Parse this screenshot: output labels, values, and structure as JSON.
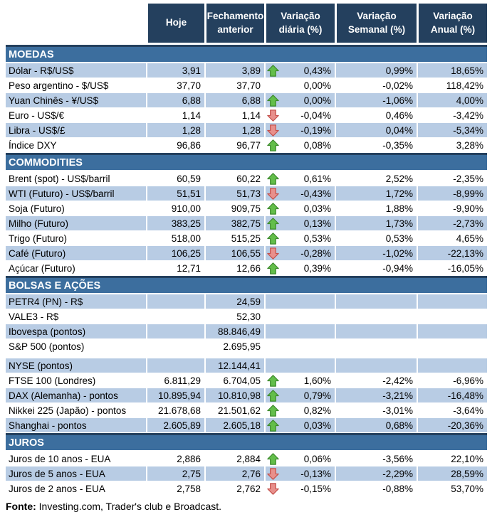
{
  "header": {
    "columns": [
      "Hoje",
      "Fechamento anterior",
      "Variação diária (%)",
      "Variação Semanal (%)",
      "Variação Anual (%)"
    ]
  },
  "colors": {
    "header_bg": "#24405E",
    "section_bg": "#3C6E9E",
    "stripe_bg": "#B8CCE4",
    "up_arrow_fill": "#63BE4A",
    "up_arrow_outline": "#3E8A2E",
    "down_arrow_fill": "#E8908C",
    "down_arrow_outline": "#C4504B"
  },
  "sections": [
    {
      "title": "MOEDAS",
      "rows": [
        {
          "label": "Dólar - R$/US$",
          "hoje": "3,91",
          "fechamento": "3,89",
          "arrow": "up",
          "var_diaria": "0,43%",
          "var_semanal": "0,99%",
          "var_anual": "18,65%",
          "shaded": true
        },
        {
          "label": "Peso argentino - $/US$",
          "hoje": "37,70",
          "fechamento": "37,70",
          "arrow": "none",
          "var_diaria": "0,00%",
          "var_semanal": "-0,02%",
          "var_anual": "118,42%",
          "shaded": false
        },
        {
          "label": "Yuan Chinês - ¥/US$",
          "hoje": "6,88",
          "fechamento": "6,88",
          "arrow": "up",
          "var_diaria": "0,00%",
          "var_semanal": "-1,06%",
          "var_anual": "4,00%",
          "shaded": true
        },
        {
          "label": "Euro - US$/€",
          "hoje": "1,14",
          "fechamento": "1,14",
          "arrow": "down",
          "var_diaria": "-0,04%",
          "var_semanal": "0,46%",
          "var_anual": "-3,42%",
          "shaded": false
        },
        {
          "label": "Libra - US$/£",
          "hoje": "1,28",
          "fechamento": "1,28",
          "arrow": "down",
          "var_diaria": "-0,19%",
          "var_semanal": "0,04%",
          "var_anual": "-5,34%",
          "shaded": true
        },
        {
          "label": "Índice DXY",
          "hoje": "96,86",
          "fechamento": "96,77",
          "arrow": "up",
          "var_diaria": "0,08%",
          "var_semanal": "-0,35%",
          "var_anual": "3,28%",
          "shaded": false
        }
      ]
    },
    {
      "title": "COMMODITIES",
      "rows": [
        {
          "label": "Brent (spot) - US$/barril",
          "hoje": "60,59",
          "fechamento": "60,22",
          "arrow": "up",
          "var_diaria": "0,61%",
          "var_semanal": "2,52%",
          "var_anual": "-2,35%",
          "shaded": false
        },
        {
          "label": "WTI (Futuro) - US$/barril",
          "hoje": "51,51",
          "fechamento": "51,73",
          "arrow": "down",
          "var_diaria": "-0,43%",
          "var_semanal": "1,72%",
          "var_anual": "-8,99%",
          "shaded": true
        },
        {
          "label": "Soja (Futuro)",
          "hoje": "910,00",
          "fechamento": "909,75",
          "arrow": "up",
          "var_diaria": "0,03%",
          "var_semanal": "1,88%",
          "var_anual": "-9,90%",
          "shaded": false
        },
        {
          "label": "Milho (Futuro)",
          "hoje": "383,25",
          "fechamento": "382,75",
          "arrow": "up",
          "var_diaria": "0,13%",
          "var_semanal": "1,73%",
          "var_anual": "-2,73%",
          "shaded": true
        },
        {
          "label": "Trigo (Futuro)",
          "hoje": "518,00",
          "fechamento": "515,25",
          "arrow": "up",
          "var_diaria": "0,53%",
          "var_semanal": "0,53%",
          "var_anual": "4,65%",
          "shaded": false
        },
        {
          "label": "Café (Futuro)",
          "hoje": "106,25",
          "fechamento": "106,55",
          "arrow": "down",
          "var_diaria": "-0,28%",
          "var_semanal": "-1,02%",
          "var_anual": "-22,13%",
          "shaded": true
        },
        {
          "label": "Açúcar (Futuro)",
          "hoje": "12,71",
          "fechamento": "12,66",
          "arrow": "up",
          "var_diaria": "0,39%",
          "var_semanal": "-0,94%",
          "var_anual": "-16,05%",
          "shaded": false
        }
      ]
    },
    {
      "title": "BOLSAS E AÇÕES",
      "rows": [
        {
          "label": "PETR4 (PN) - R$",
          "hoje": "",
          "fechamento": "24,59",
          "arrow": "none",
          "var_diaria": "",
          "var_semanal": "",
          "var_anual": "",
          "shaded": true
        },
        {
          "label": "VALE3 - R$",
          "hoje": "",
          "fechamento": "52,30",
          "arrow": "none",
          "var_diaria": "",
          "var_semanal": "",
          "var_anual": "",
          "shaded": false
        },
        {
          "label": "Ibovespa (pontos)",
          "hoje": "",
          "fechamento": "88.846,49",
          "arrow": "none",
          "var_diaria": "",
          "var_semanal": "",
          "var_anual": "",
          "shaded": true
        },
        {
          "label": "S&P 500 (pontos)",
          "hoje": "",
          "fechamento": "2.695,95",
          "arrow": "none",
          "var_diaria": "",
          "var_semanal": "",
          "var_anual": "",
          "shaded": false,
          "spacer_after": true
        },
        {
          "label": "NYSE (pontos)",
          "hoje": "",
          "fechamento": "12.144,41",
          "arrow": "none",
          "var_diaria": "",
          "var_semanal": "",
          "var_anual": "",
          "shaded": true
        },
        {
          "label": "FTSE 100 (Londres)",
          "hoje": "6.811,29",
          "fechamento": "6.704,05",
          "arrow": "up",
          "var_diaria": "1,60%",
          "var_semanal": "-2,42%",
          "var_anual": "-6,96%",
          "shaded": false
        },
        {
          "label": "DAX (Alemanha) - pontos",
          "hoje": "10.895,94",
          "fechamento": "10.810,98",
          "arrow": "up",
          "var_diaria": "0,79%",
          "var_semanal": "-3,21%",
          "var_anual": "-16,48%",
          "shaded": true
        },
        {
          "label": "Nikkei 225 (Japão) - pontos",
          "hoje": "21.678,68",
          "fechamento": "21.501,62",
          "arrow": "up",
          "var_diaria": "0,82%",
          "var_semanal": "-3,01%",
          "var_anual": "-3,64%",
          "shaded": false
        },
        {
          "label": "Shanghai - pontos",
          "hoje": "2.605,89",
          "fechamento": "2.605,18",
          "arrow": "up",
          "var_diaria": "0,03%",
          "var_semanal": "0,68%",
          "var_anual": "-20,36%",
          "shaded": true
        }
      ]
    },
    {
      "title": "JUROS",
      "rows": [
        {
          "label": "Juros de 10 anos - EUA",
          "hoje": "2,886",
          "fechamento": "2,884",
          "arrow": "up",
          "var_diaria": "0,06%",
          "var_semanal": "-3,56%",
          "var_anual": "22,10%",
          "shaded": false
        },
        {
          "label": "Juros de 5 anos - EUA",
          "hoje": "2,75",
          "fechamento": "2,76",
          "arrow": "down",
          "var_diaria": "-0,13%",
          "var_semanal": "-2,29%",
          "var_anual": "28,59%",
          "shaded": true
        },
        {
          "label": "Juros de 2 anos - EUA",
          "hoje": "2,758",
          "fechamento": "2,762",
          "arrow": "down",
          "var_diaria": "-0,15%",
          "var_semanal": "-0,88%",
          "var_anual": "53,70%",
          "shaded": false
        }
      ]
    }
  ],
  "footer": {
    "label": "Fonte:",
    "text": " Investing.com, Trader's club e Broadcast."
  }
}
